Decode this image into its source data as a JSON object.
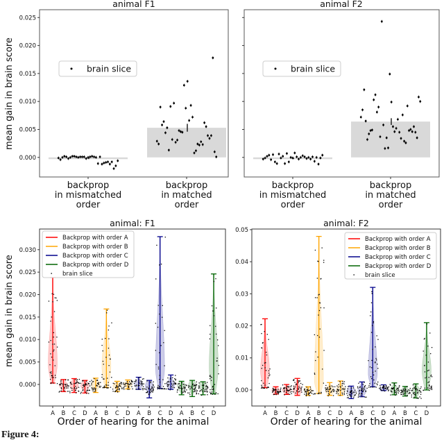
{
  "caption": "Figure 4:",
  "chart_data": [
    {
      "type": "bar",
      "title": "animal F1",
      "ylabel": "mean gain in brain score",
      "categories": [
        "backprop\nin mismatched\norder",
        "backprop\nin matched\norder"
      ],
      "category_lines": [
        [
          "backprop",
          "in mismatched",
          "order"
        ],
        [
          "backprop",
          "in matched",
          "order"
        ]
      ],
      "values": [
        -0.0002,
        0.0053
      ],
      "error": [
        0.0001,
        0.0007
      ],
      "ylim": [
        -0.0035,
        0.0264
      ],
      "yticks": [
        "0.000",
        "0.005",
        "0.010",
        "0.015",
        "0.020",
        "0.025"
      ],
      "ytick_values": [
        0,
        0.005,
        0.01,
        0.015,
        0.02,
        0.025
      ],
      "legend": {
        "label": "brain slice",
        "position": "center-left"
      },
      "bar_color": "#d9d9d9",
      "points": [
        [
          -0.0001,
          -0.0004,
          0.0,
          0.0002,
          0.0001,
          -0.0002,
          0.0,
          0.0002,
          0.0002,
          0.0001,
          0.0,
          0.0001,
          0.0001,
          0.0001,
          -0.0002,
          0.0,
          0.0001,
          0.0002,
          0.0001,
          0.0,
          -0.0011,
          0.0001,
          -0.0012,
          -0.001,
          -0.0009,
          -0.0008,
          -0.0012,
          -0.0008,
          -0.002,
          -0.0015,
          -0.0006
        ],
        [
          0.0029,
          0.0024,
          0.009,
          0.0058,
          0.0064,
          0.0044,
          0.0053,
          0.0013,
          0.0091,
          0.0032,
          0.0097,
          0.0027,
          0.0031,
          0.0048,
          0.0046,
          0.0045,
          0.0129,
          0.0088,
          0.0136,
          0.0066,
          0.0093,
          0.0072,
          0.0008,
          0.0012,
          0.0024,
          0.0022,
          0.0028,
          0.0023,
          0.0062,
          0.0055,
          0.0039,
          0.0034,
          0.0039,
          0.0178,
          0.001,
          0.0001
        ]
      ]
    },
    {
      "type": "bar",
      "title": "animal F2",
      "categories": [
        "backprop\nin mismatched\norder",
        "backprop\nin matched\norder"
      ],
      "category_lines": [
        [
          "backprop",
          "in mismatched",
          "order"
        ],
        [
          "backprop",
          "in matched",
          "order"
        ]
      ],
      "values": [
        -0.0002,
        0.0064
      ],
      "error": [
        0.0001,
        0.0006
      ],
      "ylim": [
        -0.0035,
        0.0264
      ],
      "ytick_values": [
        0,
        0.005,
        0.01,
        0.015,
        0.02,
        0.025
      ],
      "legend": {
        "label": "brain slice",
        "position": "center-left"
      },
      "bar_color": "#d9d9d9",
      "points": [
        [
          -0.0003,
          -0.0001,
          0.0002,
          0.0004,
          -0.0004,
          0.0005,
          -0.0008,
          -0.0011,
          0.0006,
          -0.0001,
          0.0002,
          -0.0011,
          0.0007,
          -0.0008,
          0.0,
          -0.0001,
          0.0008,
          0.0001,
          -0.0003,
          0.0,
          0.0003,
          0.0001,
          -0.0002,
          0.0,
          -0.0003,
          0.0001,
          -0.0007,
          0.0,
          -0.0012,
          -0.0001,
          0.0004
        ],
        [
          0.0072,
          0.0085,
          0.0121,
          0.0065,
          0.0032,
          0.0042,
          0.0048,
          0.0049,
          0.0103,
          0.0112,
          0.0081,
          0.009,
          0.0037,
          0.0243,
          0.0058,
          0.0016,
          0.0035,
          0.0017,
          0.0149,
          0.0099,
          0.0055,
          0.0046,
          0.0052,
          0.0068,
          0.0045,
          0.0034,
          0.0076,
          0.0029,
          0.0026,
          0.0092,
          0.0048,
          0.005,
          0.0046,
          0.0055,
          0.0045,
          0.0035,
          0.0108,
          0.01
        ]
      ]
    },
    {
      "type": "violin",
      "title": "animal: F1",
      "ylabel": "mean gain in brain score",
      "xlabel": "Order of hearing for the animal",
      "categories": [
        "A",
        "B",
        "C",
        "D",
        "A",
        "B",
        "C",
        "D",
        "A",
        "B",
        "C",
        "D",
        "A",
        "B",
        "C",
        "D"
      ],
      "ylim": [
        -0.0048,
        0.0346
      ],
      "yticks": [
        "0.000",
        "0.005",
        "0.010",
        "0.015",
        "0.020",
        "0.025",
        "0.030"
      ],
      "ytick_values": [
        0,
        0.005,
        0.01,
        0.015,
        0.02,
        0.025,
        0.03
      ],
      "legend": {
        "position": "top-left",
        "entries": [
          "Backprop with order A",
          "Backprop with order B",
          "Backprop with order C",
          "Backprop with order D",
          "brain slice"
        ]
      },
      "series_colors": [
        "#ff0000",
        "#ffa500",
        "#00008b",
        "#006400"
      ],
      "violins": [
        {
          "min": 0.0003,
          "max": 0.0238,
          "median": 0.0045
        },
        {
          "min": -0.0016,
          "max": 0.0011,
          "median": -0.0002
        },
        {
          "min": -0.0018,
          "max": 0.0013,
          "median": -0.0002
        },
        {
          "min": -0.0019,
          "max": 0.0009,
          "median": -0.0003
        },
        {
          "min": -0.0018,
          "max": 0.0014,
          "median": -0.0001
        },
        {
          "min": -0.0007,
          "max": 0.0168,
          "median": 0.004
        },
        {
          "min": -0.0016,
          "max": 0.0007,
          "median": -0.0003
        },
        {
          "min": -0.001,
          "max": 0.001,
          "median": 0.0
        },
        {
          "min": -0.0011,
          "max": 0.0016,
          "median": 0.0
        },
        {
          "min": -0.003,
          "max": 0.0009,
          "median": -0.0004
        },
        {
          "min": -0.0009,
          "max": 0.0329,
          "median": 0.0035
        },
        {
          "min": -0.0011,
          "max": 0.0021,
          "median": 0.0
        },
        {
          "min": -0.0023,
          "max": 0.0007,
          "median": -0.0004
        },
        {
          "min": -0.0027,
          "max": 0.0009,
          "median": -0.0004
        },
        {
          "min": -0.0023,
          "max": 0.0006,
          "median": -0.0003
        },
        {
          "min": -0.0021,
          "max": 0.0246,
          "median": 0.004
        }
      ]
    },
    {
      "type": "violin",
      "title": "animal: F2",
      "xlabel": "Order of hearing for the animal",
      "categories": [
        "A",
        "B",
        "C",
        "D",
        "A",
        "B",
        "C",
        "D",
        "A",
        "B",
        "C",
        "D",
        "A",
        "B",
        "C",
        "D"
      ],
      "ylim": [
        -0.005,
        0.0502
      ],
      "yticks": [
        "0.00",
        "0.01",
        "0.02",
        "0.03",
        "0.04",
        "0.05"
      ],
      "ytick_values": [
        0,
        0.01,
        0.02,
        0.03,
        0.04,
        0.05
      ],
      "legend": {
        "position": "top-right",
        "entries": [
          "Backprop with order A",
          "Backprop with order B",
          "Backprop with order C",
          "Backprop with order D",
          "brain slice"
        ]
      },
      "series_colors": [
        "#ff0000",
        "#ffa500",
        "#00008b",
        "#006400"
      ],
      "violins": [
        {
          "min": 0.0007,
          "max": 0.0222,
          "median": 0.006
        },
        {
          "min": -0.0013,
          "max": 0.001,
          "median": -0.0001
        },
        {
          "min": -0.0014,
          "max": 0.0017,
          "median": 0.0
        },
        {
          "min": -0.0017,
          "max": 0.0036,
          "median": 0.0
        },
        {
          "min": -0.0017,
          "max": 0.001,
          "median": -0.0002
        },
        {
          "min": -0.0011,
          "max": 0.0479,
          "median": 0.003
        },
        {
          "min": -0.0017,
          "max": 0.0023,
          "median": -0.0002
        },
        {
          "min": -0.0017,
          "max": 0.0028,
          "median": 0.0
        },
        {
          "min": -0.0027,
          "max": 0.0012,
          "median": -0.0003
        },
        {
          "min": -0.0021,
          "max": 0.0025,
          "median": -0.0002
        },
        {
          "min": 0.001,
          "max": 0.032,
          "median": 0.005
        },
        {
          "min": -0.0002,
          "max": 0.0016,
          "median": 0.0002
        },
        {
          "min": -0.0015,
          "max": 0.0022,
          "median": 0.0
        },
        {
          "min": -0.0019,
          "max": 0.0011,
          "median": -0.0003
        },
        {
          "min": -0.0025,
          "max": 0.0019,
          "median": -0.0003
        },
        {
          "min": 0.0,
          "max": 0.021,
          "median": 0.006
        }
      ]
    }
  ]
}
